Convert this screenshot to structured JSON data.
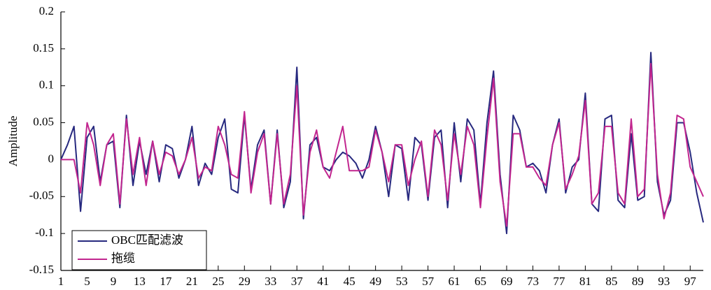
{
  "chart_data": {
    "type": "line",
    "y_label": "Amplitude",
    "x": [
      1,
      2,
      3,
      4,
      5,
      6,
      7,
      8,
      9,
      10,
      11,
      12,
      13,
      14,
      15,
      16,
      17,
      18,
      19,
      20,
      21,
      22,
      23,
      24,
      25,
      26,
      27,
      28,
      29,
      30,
      31,
      32,
      33,
      34,
      35,
      36,
      37,
      38,
      39,
      40,
      41,
      42,
      43,
      44,
      45,
      46,
      47,
      48,
      49,
      50,
      51,
      52,
      53,
      54,
      55,
      56,
      57,
      58,
      59,
      60,
      61,
      62,
      63,
      64,
      65,
      66,
      67,
      68,
      69,
      70,
      71,
      72,
      73,
      74,
      75,
      76,
      77,
      78,
      79,
      80,
      81,
      82,
      83,
      84,
      85,
      86,
      87,
      88,
      89,
      90,
      91,
      92,
      93,
      94,
      95,
      96,
      97,
      98,
      99
    ],
    "series": [
      {
        "name": "OBC匹配滤波",
        "color": "#27297f",
        "values": [
          0,
          0.02,
          0.045,
          -0.07,
          0.03,
          0.045,
          -0.03,
          0.02,
          0.025,
          -0.065,
          0.06,
          -0.035,
          0.025,
          -0.02,
          0.025,
          -0.03,
          0.02,
          0.015,
          -0.025,
          0.0,
          0.045,
          -0.035,
          -0.005,
          -0.02,
          0.03,
          0.055,
          -0.04,
          -0.045,
          0.06,
          -0.04,
          0.02,
          0.04,
          -0.06,
          0.04,
          -0.065,
          -0.03,
          0.125,
          -0.08,
          0.02,
          0.03,
          -0.01,
          -0.015,
          0.0,
          0.01,
          0.005,
          -0.005,
          -0.025,
          0.0,
          0.045,
          0.01,
          -0.05,
          0.02,
          0.015,
          -0.055,
          0.03,
          0.02,
          -0.055,
          0.03,
          0.04,
          -0.065,
          0.05,
          -0.03,
          0.055,
          0.04,
          -0.06,
          0.05,
          0.12,
          -0.02,
          -0.1,
          0.06,
          0.04,
          -0.01,
          -0.005,
          -0.015,
          -0.045,
          0.02,
          0.055,
          -0.045,
          -0.01,
          0.0,
          0.09,
          -0.06,
          -0.07,
          0.055,
          0.06,
          -0.055,
          -0.065,
          0.035,
          -0.055,
          -0.05,
          0.145,
          -0.03,
          -0.075,
          -0.055,
          0.05,
          0.05,
          0.01,
          -0.045,
          -0.085
        ]
      },
      {
        "name": "拖缆",
        "color": "#c2268f",
        "values": [
          0.0,
          0.0,
          0.0,
          -0.045,
          0.05,
          0.02,
          -0.035,
          0.02,
          0.035,
          -0.06,
          0.055,
          -0.02,
          0.03,
          -0.035,
          0.025,
          -0.02,
          0.01,
          0.005,
          -0.02,
          0.0,
          0.03,
          -0.025,
          -0.01,
          -0.015,
          0.045,
          0.02,
          -0.02,
          -0.025,
          0.065,
          -0.045,
          0.01,
          0.035,
          -0.06,
          0.035,
          -0.06,
          -0.02,
          0.1,
          -0.075,
          0.01,
          0.04,
          -0.01,
          -0.025,
          0.01,
          0.045,
          -0.015,
          -0.015,
          -0.015,
          -0.01,
          0.04,
          0.01,
          -0.03,
          0.02,
          0.02,
          -0.035,
          0.0,
          0.025,
          -0.05,
          0.04,
          0.02,
          -0.055,
          0.035,
          -0.02,
          0.045,
          0.02,
          -0.065,
          0.03,
          0.11,
          -0.03,
          -0.09,
          0.035,
          0.035,
          -0.01,
          -0.01,
          -0.025,
          -0.035,
          0.02,
          0.05,
          -0.04,
          -0.02,
          0.005,
          0.08,
          -0.06,
          -0.045,
          0.045,
          0.045,
          -0.045,
          -0.06,
          0.055,
          -0.05,
          -0.04,
          0.13,
          -0.02,
          -0.08,
          -0.045,
          0.06,
          0.055,
          -0.01,
          -0.03,
          -0.05
        ]
      }
    ],
    "xlim": [
      1,
      99
    ],
    "ylim": [
      -0.15,
      0.2
    ],
    "xticks": [
      1,
      5,
      9,
      13,
      17,
      21,
      25,
      29,
      33,
      37,
      41,
      45,
      49,
      53,
      57,
      61,
      65,
      69,
      73,
      77,
      81,
      85,
      89,
      93,
      97
    ],
    "yticks": [
      -0.15,
      -0.1,
      -0.05,
      0,
      0.05,
      0.1,
      0.15,
      0.2
    ],
    "legend": "lower left"
  }
}
